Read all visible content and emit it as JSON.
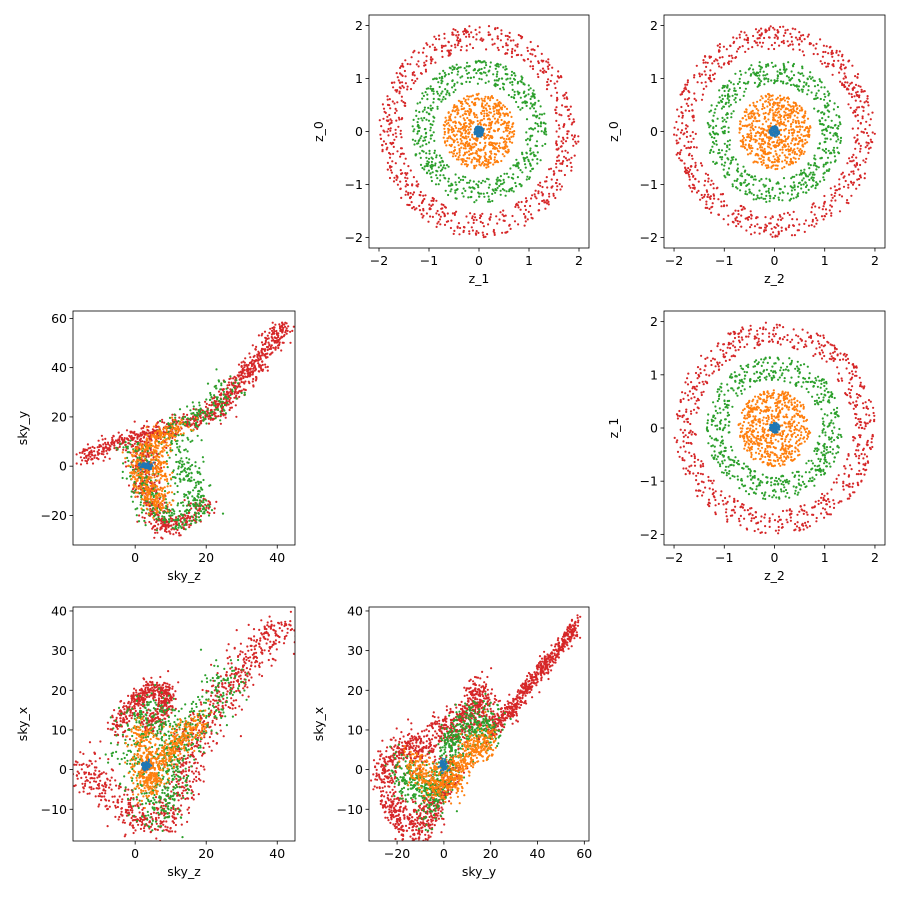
{
  "figure": {
    "type": "scatter-matrix",
    "series_colors": [
      "#1f77b4",
      "#ff7f0e",
      "#2ca02c",
      "#d62728"
    ]
  },
  "chart_data": [
    {
      "type": "scatter",
      "id": "z1_z0",
      "xlabel": "z_1",
      "ylabel": "z_0",
      "xlim": [
        -2.2,
        2.2
      ],
      "ylim": [
        -2.2,
        2.2
      ],
      "xticks": [
        -2,
        -1,
        0,
        1,
        2
      ],
      "yticks": [
        -2,
        -1,
        0,
        1,
        2
      ],
      "xtick_labels": [
        "−2",
        "−1",
        "0",
        "1",
        "2"
      ],
      "ytick_labels": [
        "−2",
        "−1",
        "0",
        "1",
        "2"
      ],
      "series": [
        {
          "color": "#d62728",
          "shape": "ring",
          "radius_min": 1.55,
          "radius_max": 2.0,
          "count": 700
        },
        {
          "color": "#2ca02c",
          "shape": "ring",
          "radius_min": 0.9,
          "radius_max": 1.35,
          "count": 600
        },
        {
          "color": "#ff7f0e",
          "shape": "ring",
          "radius_min": 0.0,
          "radius_max": 0.72,
          "count": 600
        },
        {
          "color": "#1f77b4",
          "shape": "ring",
          "radius_min": 0.0,
          "radius_max": 0.1,
          "count": 80
        }
      ]
    },
    {
      "type": "scatter",
      "id": "z2_z0",
      "xlabel": "z_2",
      "ylabel": "z_0",
      "xlim": [
        -2.2,
        2.2
      ],
      "ylim": [
        -2.2,
        2.2
      ],
      "xticks": [
        -2,
        -1,
        0,
        1,
        2
      ],
      "yticks": [
        -2,
        -1,
        0,
        1,
        2
      ],
      "xtick_labels": [
        "−2",
        "−1",
        "0",
        "1",
        "2"
      ],
      "ytick_labels": [
        "−2",
        "−1",
        "0",
        "1",
        "2"
      ],
      "series": [
        {
          "color": "#d62728",
          "shape": "ring",
          "radius_min": 1.55,
          "radius_max": 2.0,
          "count": 700
        },
        {
          "color": "#2ca02c",
          "shape": "ring",
          "radius_min": 0.9,
          "radius_max": 1.35,
          "count": 600
        },
        {
          "color": "#ff7f0e",
          "shape": "ring",
          "radius_min": 0.0,
          "radius_max": 0.72,
          "count": 600
        },
        {
          "color": "#1f77b4",
          "shape": "ring",
          "radius_min": 0.0,
          "radius_max": 0.1,
          "count": 80
        }
      ]
    },
    {
      "type": "scatter",
      "id": "skyz_skyy",
      "xlabel": "sky_z",
      "ylabel": "sky_y",
      "xlim": [
        -17.5,
        45
      ],
      "ylim": [
        -32,
        63
      ],
      "xticks": [
        0,
        20,
        40
      ],
      "yticks": [
        -20,
        0,
        20,
        40,
        60
      ],
      "xtick_labels": [
        "0",
        "20",
        "40"
      ],
      "ytick_labels": [
        "−20",
        "0",
        "20",
        "40",
        "60"
      ],
      "series": [
        {
          "color": "#d62728",
          "shape": "path",
          "spread": 1.8,
          "count": 900,
          "path": [
            [
              -15,
              3
            ],
            [
              -5,
              10
            ],
            [
              5,
              13
            ],
            [
              15,
              18
            ],
            [
              22,
              22
            ],
            [
              30,
              35
            ],
            [
              42,
              57
            ]
          ]
        },
        {
          "color": "#d62728",
          "shape": "path",
          "spread": 2.0,
          "count": 500,
          "path": [
            [
              3,
              10
            ],
            [
              2,
              0
            ],
            [
              4,
              -15
            ],
            [
              9,
              -26
            ],
            [
              15,
              -20
            ],
            [
              20,
              -15
            ]
          ]
        },
        {
          "color": "#2ca02c",
          "shape": "path",
          "spread": 2.5,
          "count": 600,
          "path": [
            [
              0,
              8
            ],
            [
              2,
              -5
            ],
            [
              5,
              -18
            ],
            [
              12,
              -22
            ],
            [
              18,
              -18
            ],
            [
              10,
              15
            ],
            [
              20,
              22
            ],
            [
              28,
              35
            ]
          ]
        },
        {
          "color": "#ff7f0e",
          "shape": "path",
          "spread": 1.8,
          "count": 500,
          "path": [
            [
              3,
              10
            ],
            [
              1,
              0
            ],
            [
              3,
              -10
            ],
            [
              7,
              -17
            ],
            [
              6,
              12
            ],
            [
              14,
              17
            ]
          ]
        },
        {
          "color": "#1f77b4",
          "shape": "blob",
          "center": [
            3,
            0
          ],
          "spread": 0.8,
          "count": 60
        }
      ]
    },
    {
      "type": "scatter",
      "id": "z2_z1",
      "xlabel": "z_2",
      "ylabel": "z_1",
      "xlim": [
        -2.2,
        2.2
      ],
      "ylim": [
        -2.2,
        2.2
      ],
      "xticks": [
        -2,
        -1,
        0,
        1,
        2
      ],
      "yticks": [
        -2,
        -1,
        0,
        1,
        2
      ],
      "xtick_labels": [
        "−2",
        "−1",
        "0",
        "1",
        "2"
      ],
      "ytick_labels": [
        "−2",
        "−1",
        "0",
        "1",
        "2"
      ],
      "series": [
        {
          "color": "#d62728",
          "shape": "ring",
          "radius_min": 1.55,
          "radius_max": 2.0,
          "count": 700
        },
        {
          "color": "#2ca02c",
          "shape": "ring",
          "radius_min": 0.9,
          "radius_max": 1.35,
          "count": 600
        },
        {
          "color": "#ff7f0e",
          "shape": "ring",
          "radius_min": 0.0,
          "radius_max": 0.72,
          "count": 600
        },
        {
          "color": "#1f77b4",
          "shape": "ring",
          "radius_min": 0.0,
          "radius_max": 0.1,
          "count": 80
        }
      ]
    },
    {
      "type": "scatter",
      "id": "skyz_skyx",
      "xlabel": "sky_z",
      "ylabel": "sky_x",
      "xlim": [
        -17.5,
        45
      ],
      "ylim": [
        -18,
        41
      ],
      "xticks": [
        0,
        20,
        40
      ],
      "yticks": [
        -10,
        0,
        10,
        20,
        30,
        40
      ],
      "xtick_labels": [
        "0",
        "20",
        "40"
      ],
      "ytick_labels": [
        "−10",
        "0",
        "10",
        "20",
        "30",
        "40"
      ],
      "series": [
        {
          "color": "#d62728",
          "shape": "path",
          "spread": 2.5,
          "count": 900,
          "path": [
            [
              -15,
              2
            ],
            [
              -8,
              -5
            ],
            [
              0,
              -12
            ],
            [
              8,
              -13
            ],
            [
              12,
              -8
            ],
            [
              15,
              5
            ],
            [
              20,
              12
            ],
            [
              25,
              18
            ],
            [
              32,
              27
            ],
            [
              42,
              37
            ]
          ]
        },
        {
          "color": "#d62728",
          "shape": "path",
          "spread": 1.5,
          "count": 500,
          "path": [
            [
              -5,
              10
            ],
            [
              0,
              18
            ],
            [
              6,
              21
            ],
            [
              9,
              20
            ],
            [
              8,
              15
            ],
            [
              3,
              10
            ]
          ]
        },
        {
          "color": "#2ca02c",
          "shape": "path",
          "spread": 3.0,
          "count": 700,
          "path": [
            [
              -2,
              0
            ],
            [
              0,
              12
            ],
            [
              5,
              16
            ],
            [
              10,
              8
            ],
            [
              3,
              -8
            ],
            [
              8,
              -10
            ],
            [
              15,
              10
            ],
            [
              22,
              18
            ],
            [
              28,
              25
            ]
          ]
        },
        {
          "color": "#ff7f0e",
          "shape": "path",
          "spread": 2.0,
          "count": 600,
          "path": [
            [
              2,
              10
            ],
            [
              3,
              3
            ],
            [
              3,
              -5
            ],
            [
              8,
              3
            ],
            [
              12,
              7
            ],
            [
              18,
              12
            ]
          ]
        },
        {
          "color": "#1f77b4",
          "shape": "blob",
          "center": [
            3,
            1
          ],
          "spread": 0.6,
          "count": 60
        }
      ]
    },
    {
      "type": "scatter",
      "id": "skyy_skyx",
      "xlabel": "sky_y",
      "ylabel": "sky_x",
      "xlim": [
        -32,
        62
      ],
      "ylim": [
        -18,
        41
      ],
      "xticks": [
        -20,
        0,
        20,
        40,
        60
      ],
      "yticks": [
        -10,
        0,
        10,
        20,
        30,
        40
      ],
      "xtick_labels": [
        "−20",
        "0",
        "20",
        "40",
        "60"
      ],
      "ytick_labels": [
        "−10",
        "0",
        "10",
        "20",
        "30",
        "40"
      ],
      "series": [
        {
          "color": "#d62728",
          "shape": "path",
          "spread": 1.2,
          "count": 600,
          "path": [
            [
              20,
              10
            ],
            [
              30,
              16
            ],
            [
              40,
              24
            ],
            [
              50,
              31
            ],
            [
              57,
              37
            ]
          ]
        },
        {
          "color": "#d62728",
          "shape": "path",
          "spread": 2.5,
          "count": 800,
          "path": [
            [
              -28,
              -3
            ],
            [
              -20,
              5
            ],
            [
              -10,
              5
            ],
            [
              -5,
              8
            ],
            [
              2,
              10
            ],
            [
              8,
              12
            ],
            [
              12,
              15
            ],
            [
              15,
              20
            ],
            [
              17,
              18
            ],
            [
              15,
              10
            ]
          ]
        },
        {
          "color": "#d62728",
          "shape": "path",
          "spread": 2.5,
          "count": 500,
          "path": [
            [
              -25,
              -5
            ],
            [
              -20,
              -12
            ],
            [
              -10,
              -15
            ],
            [
              0,
              -5
            ],
            [
              5,
              0
            ]
          ]
        },
        {
          "color": "#2ca02c",
          "shape": "path",
          "spread": 3.0,
          "count": 700,
          "path": [
            [
              -20,
              0
            ],
            [
              -10,
              -5
            ],
            [
              -5,
              -8
            ],
            [
              0,
              0
            ],
            [
              5,
              8
            ],
            [
              10,
              12
            ],
            [
              18,
              10
            ],
            [
              22,
              12
            ]
          ]
        },
        {
          "color": "#ff7f0e",
          "shape": "path",
          "spread": 2.2,
          "count": 600,
          "path": [
            [
              -15,
              2
            ],
            [
              -5,
              -2
            ],
            [
              0,
              -4
            ],
            [
              5,
              -2
            ],
            [
              10,
              4
            ],
            [
              15,
              6
            ],
            [
              20,
              8
            ]
          ]
        },
        {
          "color": "#1f77b4",
          "shape": "blob",
          "center": [
            0,
            1
          ],
          "spread": 0.8,
          "count": 60
        }
      ]
    }
  ]
}
